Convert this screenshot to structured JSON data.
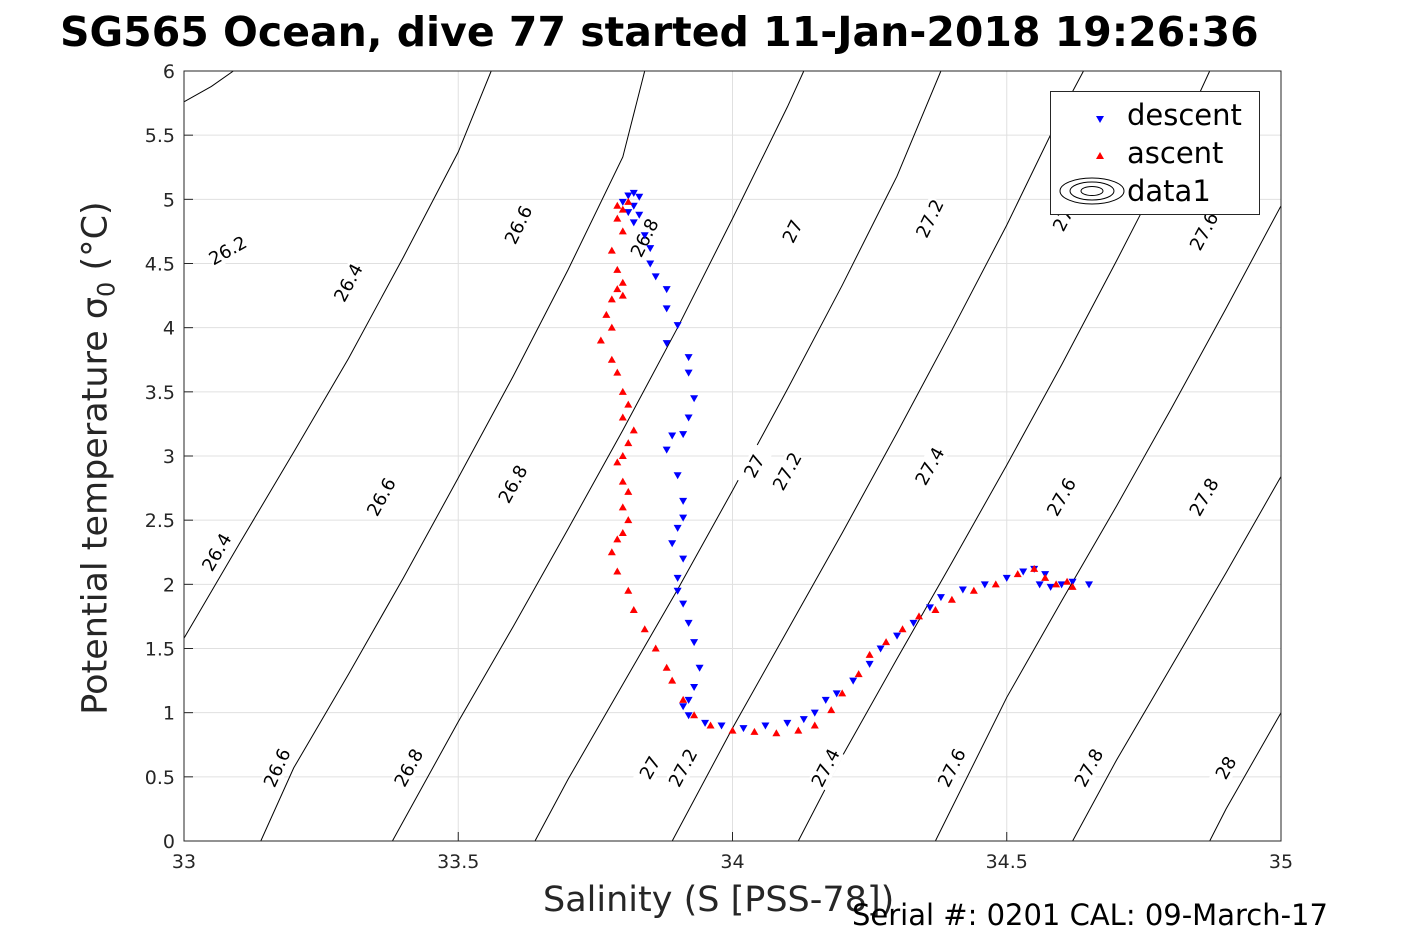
{
  "title": "SG565 Ocean, dive 77 started 11-Jan-2018 19:26:36",
  "footer": "Serial #: 0201  CAL: 09-March-17",
  "chart_data": {
    "type": "scatter",
    "xlabel": "Salinity (S [PSS-78])",
    "ylabel_main": "Potential temperature ",
    "ylabel_sigma": "σ",
    "ylabel_sub": "0",
    "ylabel_unit": " (°C)",
    "xlim": [
      33,
      35
    ],
    "ylim": [
      0,
      6
    ],
    "xticks": [
      33,
      33.5,
      34,
      34.5,
      35
    ],
    "yticks": [
      0,
      0.5,
      1,
      1.5,
      2,
      2.5,
      3,
      3.5,
      4,
      4.5,
      5,
      5.5,
      6
    ],
    "grid": true,
    "legend_position": "top-right",
    "legend": [
      "descent",
      "ascent",
      "data1"
    ],
    "colors": {
      "descent": "#0000ff",
      "ascent": "#ff0000",
      "contour": "#000000",
      "grid": "#e0e0e0"
    },
    "contours": [
      {
        "label": "26.2",
        "points": [
          [
            33.0,
            5.76
          ],
          [
            33.05,
            5.88
          ],
          [
            33.09,
            6.0
          ]
        ],
        "label_at": [
          [
            33.08,
            4.6
          ]
        ]
      },
      {
        "label": "26.4",
        "points": [
          [
            33.0,
            1.58
          ],
          [
            33.1,
            2.31
          ],
          [
            33.2,
            3.03
          ],
          [
            33.3,
            3.76
          ],
          [
            33.4,
            4.55
          ],
          [
            33.5,
            5.37
          ],
          [
            33.56,
            6.0
          ]
        ],
        "label_at": [
          [
            33.06,
            2.25
          ],
          [
            33.3,
            4.35
          ]
        ]
      },
      {
        "label": "26.6",
        "points": [
          [
            33.14,
            0.0
          ],
          [
            33.2,
            0.57
          ],
          [
            33.3,
            1.3
          ],
          [
            33.4,
            2.05
          ],
          [
            33.5,
            2.83
          ],
          [
            33.6,
            3.62
          ],
          [
            33.7,
            4.45
          ],
          [
            33.8,
            5.33
          ],
          [
            33.84,
            6.0
          ]
        ],
        "label_at": [
          [
            33.17,
            0.57
          ],
          [
            33.36,
            2.68
          ],
          [
            33.61,
            4.8
          ]
        ]
      },
      {
        "label": "26.8",
        "points": [
          [
            33.38,
            0.0
          ],
          [
            33.5,
            0.93
          ],
          [
            33.6,
            1.67
          ],
          [
            33.7,
            2.43
          ],
          [
            33.8,
            3.2
          ],
          [
            33.9,
            4.0
          ],
          [
            34.0,
            4.85
          ],
          [
            34.1,
            5.72
          ],
          [
            34.13,
            6.0
          ]
        ],
        "label_at": [
          [
            33.41,
            0.57
          ],
          [
            33.6,
            2.78
          ],
          [
            33.84,
            4.7
          ]
        ]
      },
      {
        "label": "27",
        "points": [
          [
            33.64,
            0.0
          ],
          [
            33.7,
            0.48
          ],
          [
            33.8,
            1.22
          ],
          [
            33.9,
            1.96
          ],
          [
            34.0,
            2.73
          ],
          [
            34.1,
            3.52
          ],
          [
            34.2,
            4.33
          ],
          [
            34.3,
            5.18
          ],
          [
            34.38,
            6.0
          ]
        ],
        "label_at": [
          [
            33.85,
            0.57
          ],
          [
            34.04,
            2.92
          ],
          [
            34.11,
            4.75
          ]
        ]
      },
      {
        "label": "27.2",
        "points": [
          [
            33.89,
            0.0
          ],
          [
            34.0,
            0.88
          ],
          [
            34.1,
            1.64
          ],
          [
            34.2,
            2.4
          ],
          [
            34.3,
            3.18
          ],
          [
            34.4,
            3.98
          ],
          [
            34.5,
            4.8
          ],
          [
            34.6,
            5.68
          ],
          [
            34.64,
            6.0
          ]
        ],
        "label_at": [
          [
            33.91,
            0.57
          ],
          [
            34.1,
            2.88
          ],
          [
            34.36,
            4.85
          ]
        ]
      },
      {
        "label": "27.4",
        "points": [
          [
            34.12,
            0.0
          ],
          [
            34.2,
            0.66
          ],
          [
            34.3,
            1.42
          ],
          [
            34.4,
            2.17
          ],
          [
            34.5,
            2.93
          ],
          [
            34.6,
            3.71
          ],
          [
            34.7,
            4.52
          ],
          [
            34.8,
            5.35
          ],
          [
            34.87,
            6.0
          ]
        ],
        "label_at": [
          [
            34.17,
            0.57
          ],
          [
            34.36,
            2.92
          ],
          [
            34.61,
            4.9
          ]
        ]
      },
      {
        "label": "27.6",
        "points": [
          [
            34.37,
            0.0
          ],
          [
            34.5,
            1.12
          ],
          [
            34.6,
            1.87
          ],
          [
            34.7,
            2.61
          ],
          [
            34.8,
            3.37
          ],
          [
            34.9,
            4.15
          ],
          [
            35.0,
            4.95
          ]
        ],
        "label_at": [
          [
            34.4,
            0.57
          ],
          [
            34.6,
            2.68
          ],
          [
            34.86,
            4.75
          ]
        ]
      },
      {
        "label": "27.8",
        "points": [
          [
            34.62,
            0.0
          ],
          [
            34.7,
            0.63
          ],
          [
            34.8,
            1.36
          ],
          [
            34.9,
            2.09
          ],
          [
            35.0,
            2.84
          ]
        ],
        "label_at": [
          [
            34.65,
            0.57
          ],
          [
            34.86,
            2.68
          ]
        ]
      },
      {
        "label": "28",
        "points": [
          [
            34.87,
            0.0
          ],
          [
            34.9,
            0.25
          ],
          [
            35.0,
            1.0
          ]
        ],
        "label_at": [
          [
            34.9,
            0.57
          ]
        ]
      }
    ],
    "descent": [
      [
        33.82,
        5.05
      ],
      [
        33.81,
        5.03
      ],
      [
        33.83,
        5.02
      ],
      [
        33.8,
        4.98
      ],
      [
        33.82,
        4.95
      ],
      [
        33.81,
        4.9
      ],
      [
        33.83,
        4.88
      ],
      [
        33.82,
        4.82
      ],
      [
        33.84,
        4.72
      ],
      [
        33.85,
        4.62
      ],
      [
        33.85,
        4.5
      ],
      [
        33.86,
        4.4
      ],
      [
        33.88,
        4.3
      ],
      [
        33.88,
        4.15
      ],
      [
        33.9,
        4.02
      ],
      [
        33.88,
        3.88
      ],
      [
        33.92,
        3.77
      ],
      [
        33.92,
        3.65
      ],
      [
        33.93,
        3.45
      ],
      [
        33.92,
        3.3
      ],
      [
        33.91,
        3.17
      ],
      [
        33.89,
        3.16
      ],
      [
        33.88,
        3.05
      ],
      [
        33.9,
        2.85
      ],
      [
        33.91,
        2.65
      ],
      [
        33.91,
        2.52
      ],
      [
        33.9,
        2.44
      ],
      [
        33.89,
        2.32
      ],
      [
        33.91,
        2.2
      ],
      [
        33.9,
        2.05
      ],
      [
        33.9,
        1.95
      ],
      [
        33.91,
        1.85
      ],
      [
        33.92,
        1.7
      ],
      [
        33.93,
        1.55
      ],
      [
        33.94,
        1.35
      ],
      [
        33.93,
        1.2
      ],
      [
        33.92,
        1.1
      ],
      [
        33.91,
        1.05
      ],
      [
        33.92,
        0.98
      ],
      [
        33.95,
        0.92
      ],
      [
        33.98,
        0.9
      ],
      [
        34.02,
        0.88
      ],
      [
        34.06,
        0.9
      ],
      [
        34.1,
        0.92
      ],
      [
        34.13,
        0.95
      ],
      [
        34.15,
        1.0
      ],
      [
        34.17,
        1.1
      ],
      [
        34.19,
        1.15
      ],
      [
        34.22,
        1.25
      ],
      [
        34.25,
        1.38
      ],
      [
        34.27,
        1.5
      ],
      [
        34.3,
        1.6
      ],
      [
        34.33,
        1.7
      ],
      [
        34.36,
        1.82
      ],
      [
        34.38,
        1.9
      ],
      [
        34.42,
        1.96
      ],
      [
        34.46,
        2.0
      ],
      [
        34.5,
        2.05
      ],
      [
        34.53,
        2.1
      ],
      [
        34.55,
        2.12
      ],
      [
        34.57,
        2.08
      ],
      [
        34.56,
        2.0
      ],
      [
        34.58,
        1.98
      ],
      [
        34.6,
        2.0
      ],
      [
        34.62,
        2.02
      ],
      [
        34.65,
        2.0
      ]
    ],
    "ascent": [
      [
        33.79,
        4.95
      ],
      [
        33.8,
        4.92
      ],
      [
        33.81,
        4.98
      ],
      [
        33.79,
        4.85
      ],
      [
        33.8,
        4.75
      ],
      [
        33.78,
        4.6
      ],
      [
        33.79,
        4.45
      ],
      [
        33.8,
        4.35
      ],
      [
        33.79,
        4.3
      ],
      [
        33.8,
        4.25
      ],
      [
        33.78,
        4.22
      ],
      [
        33.77,
        4.1
      ],
      [
        33.78,
        4.0
      ],
      [
        33.76,
        3.9
      ],
      [
        33.78,
        3.75
      ],
      [
        33.79,
        3.65
      ],
      [
        33.8,
        3.5
      ],
      [
        33.81,
        3.4
      ],
      [
        33.8,
        3.3
      ],
      [
        33.82,
        3.2
      ],
      [
        33.81,
        3.1
      ],
      [
        33.8,
        3.0
      ],
      [
        33.79,
        2.95
      ],
      [
        33.8,
        2.8
      ],
      [
        33.81,
        2.72
      ],
      [
        33.8,
        2.6
      ],
      [
        33.81,
        2.5
      ],
      [
        33.8,
        2.4
      ],
      [
        33.79,
        2.35
      ],
      [
        33.78,
        2.25
      ],
      [
        33.79,
        2.1
      ],
      [
        33.81,
        1.95
      ],
      [
        33.82,
        1.8
      ],
      [
        33.84,
        1.65
      ],
      [
        33.86,
        1.5
      ],
      [
        33.88,
        1.35
      ],
      [
        33.89,
        1.25
      ],
      [
        33.91,
        1.1
      ],
      [
        33.93,
        0.98
      ],
      [
        33.96,
        0.9
      ],
      [
        34.0,
        0.86
      ],
      [
        34.04,
        0.85
      ],
      [
        34.08,
        0.84
      ],
      [
        34.12,
        0.86
      ],
      [
        34.15,
        0.9
      ],
      [
        34.18,
        1.02
      ],
      [
        34.2,
        1.15
      ],
      [
        34.23,
        1.3
      ],
      [
        34.25,
        1.45
      ],
      [
        34.28,
        1.55
      ],
      [
        34.31,
        1.65
      ],
      [
        34.34,
        1.75
      ],
      [
        34.37,
        1.8
      ],
      [
        34.4,
        1.88
      ],
      [
        34.44,
        1.95
      ],
      [
        34.48,
        2.0
      ],
      [
        34.52,
        2.08
      ],
      [
        34.55,
        2.12
      ],
      [
        34.57,
        2.05
      ],
      [
        34.59,
        2.0
      ],
      [
        34.61,
        2.02
      ],
      [
        34.62,
        1.98
      ]
    ]
  }
}
